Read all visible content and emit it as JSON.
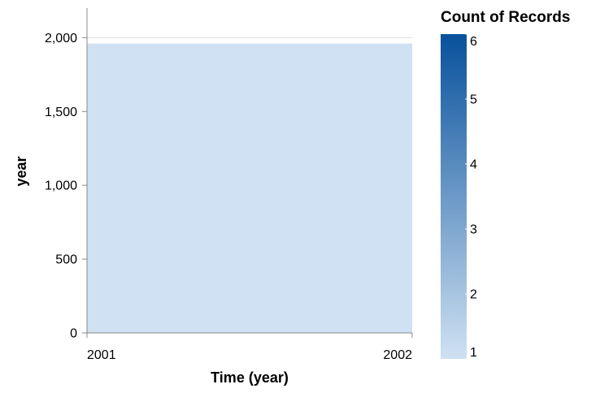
{
  "chart_data": {
    "type": "heatmap",
    "xlabel": "Time (year)",
    "ylabel": "year",
    "x_ticks": [
      "2001",
      "2002"
    ],
    "x_range": [
      2001,
      2002
    ],
    "y_ticks": [
      0,
      500,
      1000,
      1500,
      2000
    ],
    "y_tick_labels": [
      "0",
      "500",
      "1,000",
      "1,500",
      "2,000"
    ],
    "ylim": [
      0,
      2200
    ],
    "grid": true,
    "cells": [
      {
        "x_start": 2001,
        "x_end": 2002,
        "y_start": 0,
        "y_end": 1960,
        "count": 1
      }
    ],
    "legend": {
      "title": "Count of Records",
      "placement": "right",
      "min": 1,
      "max": 6,
      "ticks": [
        1,
        2,
        3,
        4,
        5,
        6
      ],
      "colors": [
        "#cfe1f2",
        "#08519c"
      ]
    }
  }
}
